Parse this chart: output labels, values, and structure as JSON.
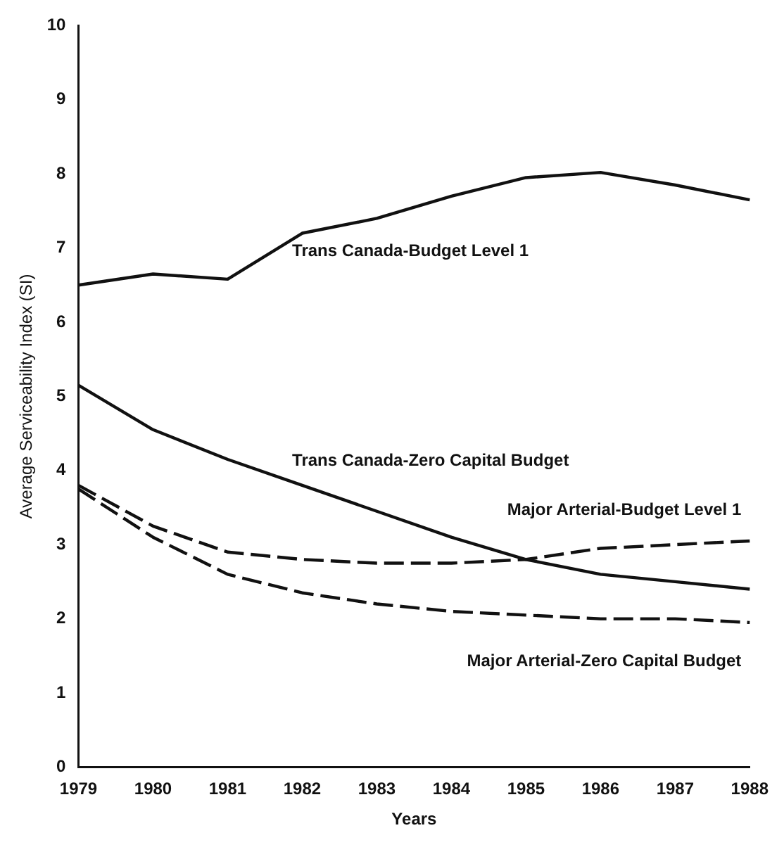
{
  "chart_data": {
    "type": "line",
    "xlabel": "Years",
    "ylabel": "Average Serviceability Index (SI)",
    "categories": [
      "1979",
      "1980",
      "1981",
      "1982",
      "1983",
      "1984",
      "1985",
      "1986",
      "1987",
      "1988"
    ],
    "ylim": [
      0,
      10
    ],
    "yticks": [
      0,
      1,
      2,
      3,
      4,
      5,
      6,
      7,
      8,
      9,
      10
    ],
    "grid": false,
    "legend": false,
    "marker": "none",
    "series": [
      {
        "name": "Trans Canada-Budget Level 1",
        "color": "#111111",
        "line_style": "solid",
        "values": [
          6.5,
          6.65,
          6.58,
          7.2,
          7.4,
          7.7,
          7.95,
          8.02,
          7.85,
          7.65
        ]
      },
      {
        "name": "Trans Canada-Zero Capital Budget",
        "color": "#111111",
        "line_style": "solid",
        "values": [
          5.15,
          4.55,
          4.15,
          3.8,
          3.45,
          3.1,
          2.8,
          2.6,
          2.5,
          2.4
        ]
      },
      {
        "name": "Major Arterial-Budget Level 1",
        "color": "#111111",
        "line_style": "dashed",
        "values": [
          3.8,
          3.25,
          2.9,
          2.8,
          2.75,
          2.75,
          2.8,
          2.95,
          3.0,
          3.05
        ]
      },
      {
        "name": "Major Arterial-Zero Capital Budget",
        "color": "#111111",
        "line_style": "dashed",
        "values": [
          3.75,
          3.1,
          2.6,
          2.35,
          2.2,
          2.1,
          2.05,
          2.0,
          2.0,
          1.95
        ]
      }
    ]
  }
}
